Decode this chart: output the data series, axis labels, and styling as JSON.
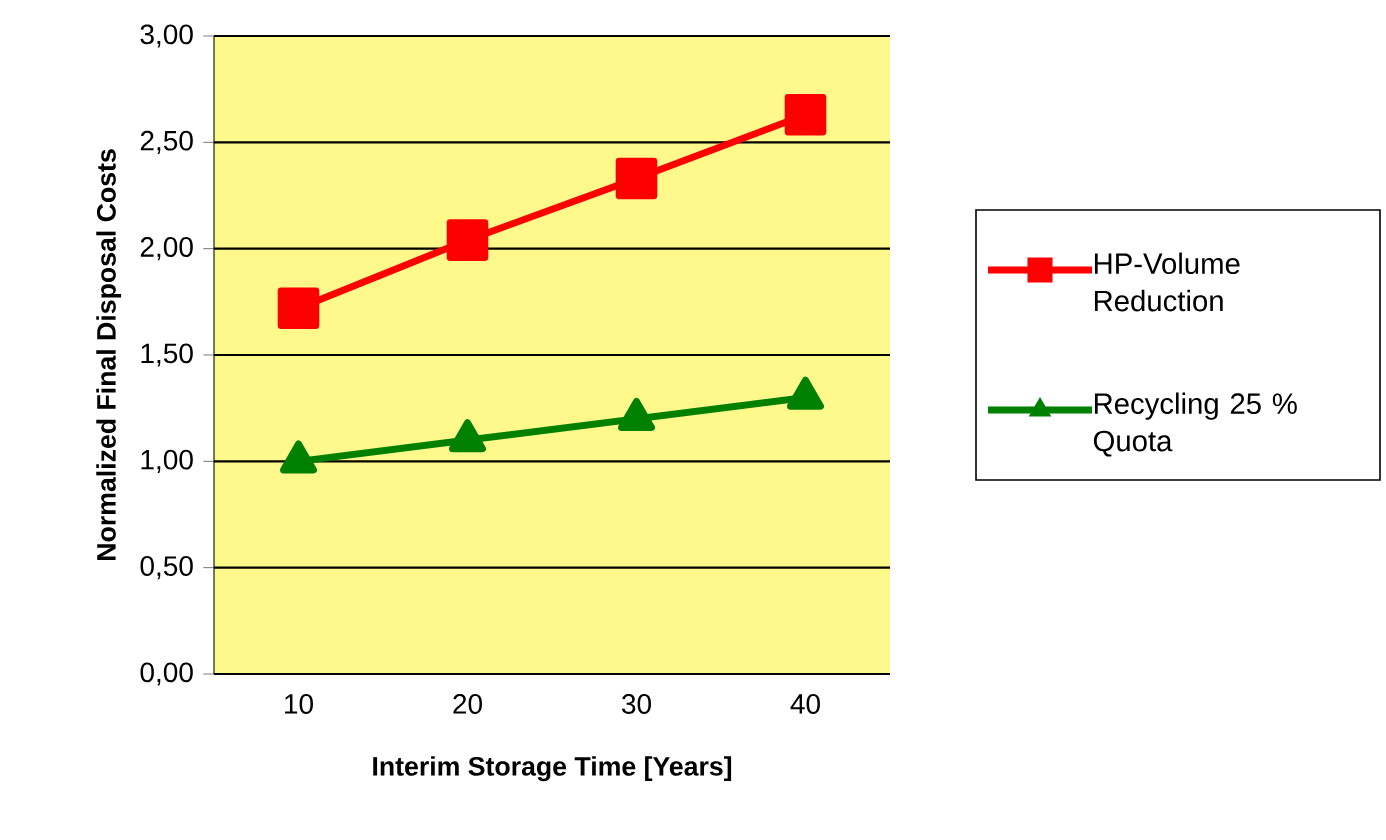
{
  "chart_data": {
    "type": "line",
    "xlabel": "Interim Storage Time [Years]",
    "ylabel": "Normalized Final Disposal Costs",
    "categories": [
      "10",
      "20",
      "30",
      "40"
    ],
    "series": [
      {
        "name": "HP-Volume Reduction",
        "color": "#ff0000",
        "marker": "square",
        "values": [
          1.72,
          2.04,
          2.33,
          2.63
        ]
      },
      {
        "name": "Recycling 25 % Quota",
        "color": "#008000",
        "marker": "triangle",
        "values": [
          1.0,
          1.1,
          1.2,
          1.3
        ]
      }
    ],
    "ylim": [
      0,
      3
    ],
    "yticks": [
      {
        "value": 0,
        "label": "0,00"
      },
      {
        "value": 0.5,
        "label": "0,50"
      },
      {
        "value": 1,
        "label": "1,00"
      },
      {
        "value": 1.5,
        "label": "1,50"
      },
      {
        "value": 2,
        "label": "2,00"
      },
      {
        "value": 2.5,
        "label": "2,50"
      },
      {
        "value": 3,
        "label": "3,00"
      }
    ],
    "grid": "y",
    "legend": "right"
  }
}
